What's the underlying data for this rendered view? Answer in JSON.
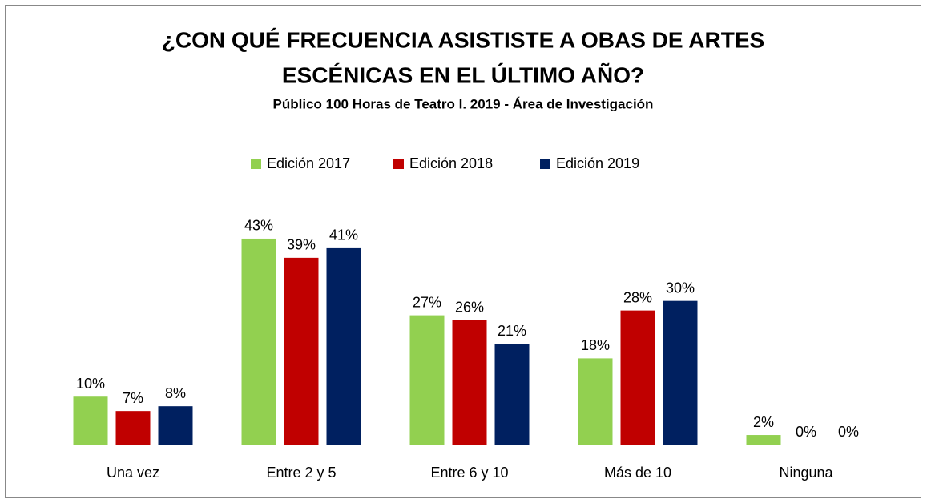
{
  "chart_data": {
    "type": "bar",
    "title": [
      "¿CON QUÉ FRECUENCIA ASISTISTE A OBAS DE ARTES",
      "ESCÉNICAS EN EL ÚLTIMO AÑO?"
    ],
    "subtitle": "Público 100 Horas de Teatro I. 2019 - Área de Investigación",
    "categories": [
      "Una vez",
      "Entre 2 y 5",
      "Entre 6 y 10",
      "Más de 10",
      "Ninguna"
    ],
    "series": [
      {
        "name": "Edición 2017",
        "color": "#92d050",
        "values": [
          10,
          43,
          27,
          18,
          2
        ],
        "value_labels": [
          "10%",
          "43%",
          "27%",
          "18%",
          "2%"
        ]
      },
      {
        "name": "Edición 2018",
        "color": "#c00000",
        "values": [
          7,
          39,
          26,
          28,
          0
        ],
        "value_labels": [
          "7%",
          "39%",
          "26%",
          "28%",
          "0%"
        ]
      },
      {
        "name": "Edición 2019",
        "color": "#002060",
        "values": [
          8,
          41,
          21,
          30,
          0
        ],
        "value_labels": [
          "8%",
          "41%",
          "21%",
          "30%",
          "0%"
        ]
      }
    ],
    "ylim": [
      0,
      45
    ]
  }
}
